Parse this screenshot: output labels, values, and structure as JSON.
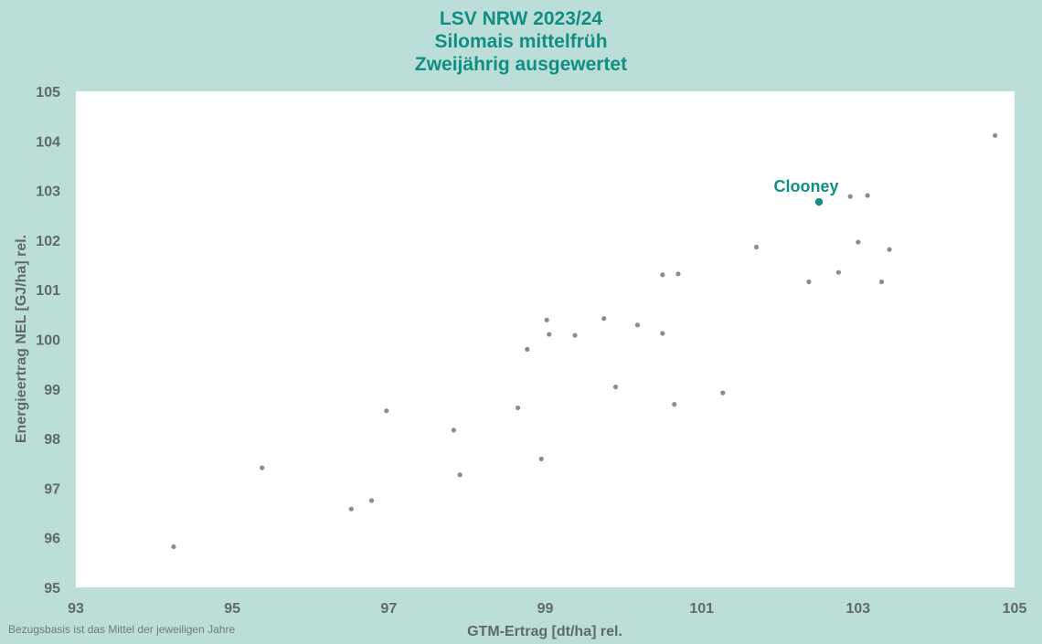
{
  "chart_data": {
    "type": "scatter",
    "title": [
      "LSV NRW 2023/24",
      "Silomais mittelfrüh",
      "Zweijährig ausgewertet"
    ],
    "xlabel": "GTM-Ertrag [dt/ha] rel.",
    "ylabel": "Energieertrag NEL [GJ/ha] rel.",
    "xlim": [
      93,
      105
    ],
    "ylim": [
      95,
      105
    ],
    "xticks": [
      93,
      95,
      97,
      99,
      101,
      103,
      105
    ],
    "yticks": [
      95,
      96,
      97,
      98,
      99,
      100,
      101,
      102,
      103,
      104,
      105
    ],
    "grid": false,
    "colors": {
      "points": "#8c8c8c",
      "highlight": "#0f8f82"
    },
    "points": [
      {
        "x": 94.25,
        "y": 95.82
      },
      {
        "x": 95.38,
        "y": 97.41
      },
      {
        "x": 96.52,
        "y": 96.58
      },
      {
        "x": 96.78,
        "y": 96.75
      },
      {
        "x": 96.97,
        "y": 98.56
      },
      {
        "x": 97.83,
        "y": 98.17
      },
      {
        "x": 97.91,
        "y": 97.27
      },
      {
        "x": 98.65,
        "y": 98.62
      },
      {
        "x": 98.77,
        "y": 99.8
      },
      {
        "x": 98.95,
        "y": 97.59
      },
      {
        "x": 99.02,
        "y": 100.39
      },
      {
        "x": 99.05,
        "y": 100.1
      },
      {
        "x": 99.38,
        "y": 100.08
      },
      {
        "x": 99.75,
        "y": 100.42
      },
      {
        "x": 99.9,
        "y": 99.04
      },
      {
        "x": 100.18,
        "y": 100.29
      },
      {
        "x": 100.5,
        "y": 101.3
      },
      {
        "x": 100.5,
        "y": 100.12
      },
      {
        "x": 100.65,
        "y": 98.69
      },
      {
        "x": 100.7,
        "y": 101.32
      },
      {
        "x": 101.27,
        "y": 98.92
      },
      {
        "x": 101.7,
        "y": 101.86
      },
      {
        "x": 102.37,
        "y": 101.16
      },
      {
        "x": 102.75,
        "y": 101.35
      },
      {
        "x": 102.9,
        "y": 102.88
      },
      {
        "x": 103.0,
        "y": 101.96
      },
      {
        "x": 103.12,
        "y": 102.9
      },
      {
        "x": 103.3,
        "y": 101.16
      },
      {
        "x": 103.4,
        "y": 101.81
      },
      {
        "x": 104.75,
        "y": 104.11
      }
    ],
    "highlight": {
      "label": "Clooney",
      "x": 102.5,
      "y": 102.77
    }
  },
  "footnote": "Bezugsbasis ist das Mittel der jeweiligen  Jahre"
}
